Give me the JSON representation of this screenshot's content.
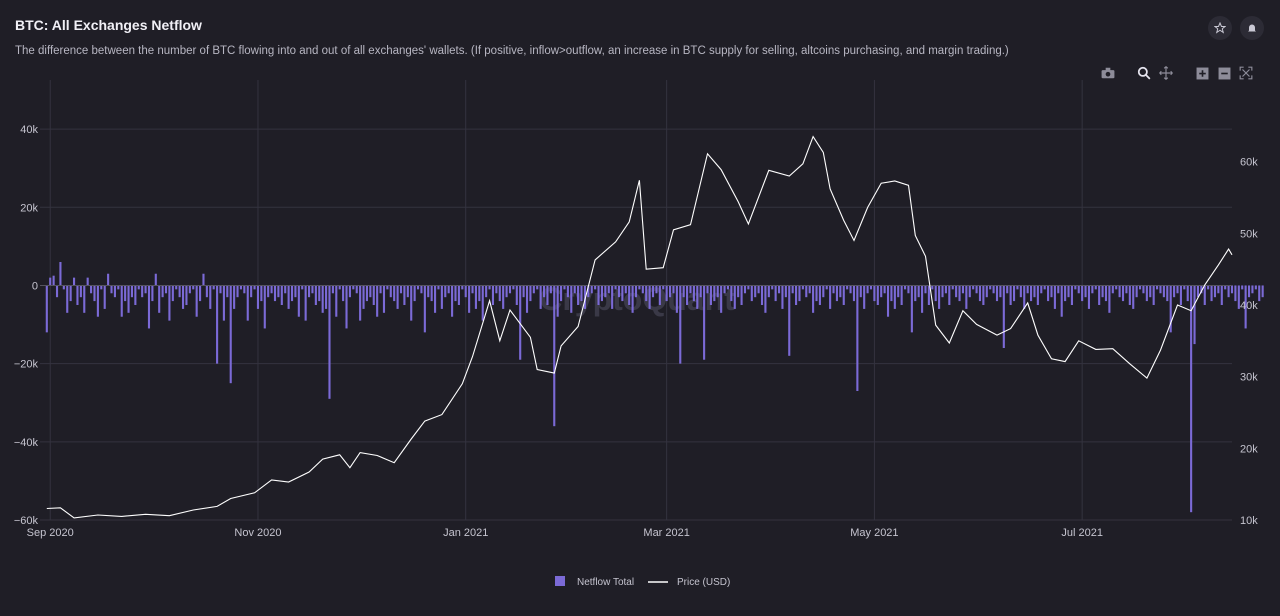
{
  "header": {
    "title": "BTC: All Exchanges Netflow",
    "subtitle": "The difference between the number of BTC flowing into and out of all exchanges' wallets. (If positive, inflow>outflow, an increase in BTC supply for selling, altcoins purchasing, and margin trading.)"
  },
  "icons": {
    "star": "star-icon",
    "bell": "bell-icon",
    "camera": "camera-icon",
    "zoom": "zoom-icon",
    "pan": "pan-icon",
    "zoom_in": "zoom-in-icon",
    "zoom_out": "zoom-out-icon",
    "reset": "autoscale-icon"
  },
  "watermark": "CryptoQuant",
  "colors": {
    "background": "#1f1e26",
    "netflow": "#7b6ad6",
    "price": "#ffffff",
    "grid": "#34333f"
  },
  "chart_data": {
    "type": "bar+line",
    "x_range": [
      "2020-08-29",
      "2021-08-14"
    ],
    "x_ticks": [
      {
        "date": "2020-09-01",
        "label": "Sep 2020"
      },
      {
        "date": "2020-11-01",
        "label": "Nov 2020"
      },
      {
        "date": "2021-01-01",
        "label": "Jan 2021"
      },
      {
        "date": "2021-03-01",
        "label": "Mar 2021"
      },
      {
        "date": "2021-05-01",
        "label": "May 2021"
      },
      {
        "date": "2021-07-01",
        "label": "Jul 2021"
      }
    ],
    "y_left": {
      "range": [
        -60000,
        50000
      ],
      "ticks": [
        40000,
        20000,
        0,
        -20000,
        -40000,
        -60000
      ],
      "tick_labels": [
        "40k",
        "20k",
        "0",
        "−20k",
        "−40k",
        "−60k"
      ]
    },
    "y_right": {
      "range": [
        10000,
        70000
      ],
      "ticks": [
        60000,
        50000,
        40000,
        30000,
        20000,
        10000
      ],
      "tick_labels": [
        "60k",
        "50k",
        "40k",
        "30k",
        "20k",
        "10k"
      ]
    },
    "series": [
      {
        "name": "Netflow Total",
        "axis": "left",
        "start_date": "2020-08-31",
        "values": [
          -12000,
          2000,
          2500,
          -3000,
          6000,
          -1000,
          -7000,
          -4000,
          2000,
          -5000,
          -3000,
          -7000,
          2000,
          -2000,
          -4000,
          -8000,
          -1000,
          -6000,
          3000,
          -2000,
          -3000,
          -1000,
          -8000,
          -4000,
          -7000,
          -3000,
          -5000,
          -1000,
          -3000,
          -2000,
          -11000,
          -4000,
          3000,
          -7000,
          -3000,
          -2000,
          -9000,
          -4000,
          -1000,
          -3000,
          -6000,
          -5000,
          -2000,
          -1000,
          -8000,
          -4000,
          3000,
          -3000,
          -6000,
          -1000,
          -20000,
          -2000,
          -9000,
          -3000,
          -25000,
          -6000,
          -3000,
          -1000,
          -2000,
          -9000,
          -3000,
          -1000,
          -6000,
          -4000,
          -11000,
          -3000,
          -2000,
          -4000,
          -3000,
          -5000,
          -2000,
          -6000,
          -4000,
          -3000,
          -8000,
          -1000,
          -9000,
          -3000,
          -2000,
          -5000,
          -4000,
          -7000,
          -6000,
          -29000,
          -2000,
          -8000,
          -1000,
          -4000,
          -11000,
          -3000,
          -1000,
          -2000,
          -9000,
          -6000,
          -4000,
          -3000,
          -5000,
          -8000,
          -2000,
          -7000,
          -1000,
          -3000,
          -4000,
          -6000,
          -2000,
          -5000,
          -3000,
          -9000,
          -4000,
          -1000,
          -2000,
          -12000,
          -3000,
          -4000,
          -7000,
          -1000,
          -6000,
          -3000,
          -2000,
          -8000,
          -4000,
          -5000,
          -1000,
          -3000,
          -7000,
          -2000,
          -6000,
          -4000,
          -9000,
          -3000,
          -1000,
          -5000,
          -2000,
          -4000,
          -6000,
          -3000,
          -2000,
          -1000,
          -5000,
          -19000,
          -3000,
          -7000,
          -4000,
          -2000,
          -1000,
          -6000,
          -3000,
          -5000,
          -2000,
          -36000,
          -8000,
          -4000,
          -1000,
          -3000,
          -7000,
          -2000,
          -5000,
          -4000,
          -6000,
          -3000,
          -2000,
          -1000,
          -5000,
          -4000,
          -3000,
          -2000,
          -6000,
          -1000,
          -3000,
          -4000,
          -2000,
          -5000,
          -7000,
          -3000,
          -1000,
          -2000,
          -4000,
          -6000,
          -3000,
          -2000,
          -5000,
          -1000,
          -4000,
          -3000,
          -2000,
          -7000,
          -20000,
          -3000,
          -5000,
          -2000,
          -4000,
          -6000,
          -3000,
          -19000,
          -2000,
          -5000,
          -4000,
          -3000,
          -7000,
          -2000,
          -1000,
          -4000,
          -6000,
          -3000,
          -5000,
          -2000,
          -1000,
          -4000,
          -3000,
          -2000,
          -5000,
          -7000,
          -3000,
          -1000,
          -4000,
          -2000,
          -6000,
          -3000,
          -18000,
          -2000,
          -5000,
          -4000,
          -1000,
          -3000,
          -2000,
          -7000,
          -4000,
          -5000,
          -3000,
          -1000,
          -6000,
          -2000,
          -4000,
          -3000,
          -5000,
          -1000,
          -2000,
          -4000,
          -27000,
          -3000,
          -6000,
          -2000,
          -1000,
          -4000,
          -5000,
          -3000,
          -2000,
          -8000,
          -4000,
          -6000,
          -3000,
          -5000,
          -1000,
          -2000,
          -12000,
          -4000,
          -3000,
          -7000,
          -2000,
          -5000,
          -1000,
          -4000,
          -6000,
          -3000,
          -2000,
          -5000,
          -1000,
          -3000,
          -4000,
          -2000,
          -6000,
          -3000,
          -1000,
          -2000,
          -4000,
          -5000,
          -3000,
          -1000,
          -2000,
          -4000,
          -3000,
          -16000,
          -2000,
          -5000,
          -4000,
          -1000,
          -3000,
          -6000,
          -2000,
          -4000,
          -3000,
          -5000,
          -2000,
          -1000,
          -4000,
          -3000,
          -6000,
          -2000,
          -8000,
          -4000,
          -3000,
          -5000,
          -1000,
          -2000,
          -4000,
          -3000,
          -6000,
          -2000,
          -1000,
          -5000,
          -3000,
          -4000,
          -7000,
          -2000,
          -1000,
          -3000,
          -4000,
          -2000,
          -5000,
          -6000,
          -3000,
          -1000,
          -2000,
          -4000,
          -3000,
          -5000,
          -1000,
          -2000,
          -3000,
          -4000,
          -12000,
          -3000,
          -2000,
          -5000,
          -1000,
          -4000,
          -58000,
          -15000,
          -3000,
          -2000,
          -5000,
          -1000,
          -4000,
          -3000,
          -2000,
          -5000,
          -1000,
          -3000,
          -2000,
          -4000,
          -6000,
          -1000,
          -11000,
          -3000,
          -2000,
          -1000,
          -4000,
          -3000
        ],
        "positive_values": [
          0,
          2000,
          2500,
          0,
          6000,
          0,
          0,
          0,
          2000,
          0,
          0,
          0,
          2000,
          0,
          0,
          0,
          0,
          0,
          3000,
          0,
          0,
          0,
          0,
          0,
          0,
          0,
          0,
          0,
          0,
          0,
          0,
          0,
          3000,
          0,
          0,
          0,
          0,
          0,
          0,
          0,
          0,
          0,
          0,
          0,
          0,
          0,
          3000,
          0,
          0,
          0,
          0,
          0,
          0,
          0,
          0,
          0,
          0,
          0,
          0,
          0,
          0,
          0,
          0,
          0,
          0,
          0,
          0,
          0,
          0,
          0,
          0,
          0,
          0,
          0,
          0,
          0,
          0,
          0,
          0,
          0,
          0,
          0,
          0,
          0,
          0,
          0,
          0,
          0,
          0,
          0,
          0,
          0,
          0,
          0,
          0,
          0,
          0,
          0,
          0,
          0,
          0,
          0,
          0,
          0,
          0,
          0,
          0,
          0,
          0,
          0,
          0,
          0,
          0,
          0,
          0,
          0,
          0,
          0,
          0,
          0,
          0,
          0,
          0,
          0,
          0,
          0,
          0,
          0,
          0,
          0,
          0,
          0,
          0,
          0,
          0,
          0,
          0,
          0,
          0,
          0,
          0,
          0,
          0,
          0,
          0,
          0,
          0,
          0,
          0,
          0,
          0,
          0,
          0,
          0,
          0,
          0,
          0,
          0,
          0,
          0,
          0,
          0,
          0,
          0,
          0,
          0,
          0,
          0,
          0,
          0,
          0,
          0,
          0,
          0,
          0,
          0,
          0,
          0,
          0,
          0,
          0,
          0,
          0,
          0,
          0,
          0,
          0,
          0,
          0,
          0,
          0,
          0,
          0,
          0,
          0,
          0,
          0,
          0,
          0,
          0,
          0,
          0,
          0,
          0,
          0,
          0,
          0,
          0,
          0,
          0,
          0,
          0,
          0,
          0,
          0,
          0,
          0,
          0,
          0,
          0,
          0,
          0,
          0,
          0,
          0,
          0,
          0,
          0,
          0,
          0,
          0,
          0,
          0,
          0,
          0,
          0,
          0,
          0,
          0,
          0,
          0,
          0,
          0,
          0,
          0,
          0,
          0,
          0,
          0,
          0,
          0,
          0,
          0,
          0,
          0,
          0,
          0,
          0,
          0,
          0,
          0,
          0,
          0,
          0,
          0,
          0,
          0,
          0,
          0,
          0,
          0,
          0,
          0,
          0,
          0,
          0,
          0,
          0,
          0,
          0,
          0,
          0,
          0,
          0,
          0,
          0,
          0,
          0,
          0,
          0,
          0,
          0,
          0,
          0,
          0,
          0,
          0,
          0,
          0,
          0,
          0,
          0,
          0,
          0,
          0,
          0,
          0,
          0,
          0,
          0,
          0,
          0,
          0,
          0,
          0,
          0,
          0,
          0,
          0,
          0,
          0,
          0,
          0,
          0,
          0,
          0,
          0,
          0,
          0,
          0,
          0,
          0,
          0,
          0,
          0,
          0
        ]
      },
      {
        "name": "Price (USD)",
        "axis": "right",
        "points": [
          [
            "2020-08-31",
            11600
          ],
          [
            "2020-09-04",
            11700
          ],
          [
            "2020-09-08",
            10300
          ],
          [
            "2020-09-15",
            10700
          ],
          [
            "2020-09-22",
            10500
          ],
          [
            "2020-09-29",
            10800
          ],
          [
            "2020-10-06",
            10600
          ],
          [
            "2020-10-13",
            11400
          ],
          [
            "2020-10-20",
            11900
          ],
          [
            "2020-10-24",
            13000
          ],
          [
            "2020-10-31",
            13800
          ],
          [
            "2020-11-05",
            15600
          ],
          [
            "2020-11-10",
            15300
          ],
          [
            "2020-11-16",
            16700
          ],
          [
            "2020-11-20",
            18500
          ],
          [
            "2020-11-25",
            19100
          ],
          [
            "2020-11-28",
            17300
          ],
          [
            "2020-12-01",
            19400
          ],
          [
            "2020-12-06",
            19000
          ],
          [
            "2020-12-11",
            18000
          ],
          [
            "2020-12-16",
            21300
          ],
          [
            "2020-12-20",
            23800
          ],
          [
            "2020-12-25",
            24700
          ],
          [
            "2020-12-31",
            29000
          ],
          [
            "2021-01-03",
            32800
          ],
          [
            "2021-01-08",
            40600
          ],
          [
            "2021-01-11",
            35000
          ],
          [
            "2021-01-14",
            39300
          ],
          [
            "2021-01-20",
            35500
          ],
          [
            "2021-01-22",
            31000
          ],
          [
            "2021-01-27",
            30500
          ],
          [
            "2021-01-29",
            34300
          ],
          [
            "2021-02-03",
            37000
          ],
          [
            "2021-02-08",
            46300
          ],
          [
            "2021-02-14",
            48800
          ],
          [
            "2021-02-18",
            51600
          ],
          [
            "2021-02-21",
            57400
          ],
          [
            "2021-02-23",
            45000
          ],
          [
            "2021-02-28",
            45200
          ],
          [
            "2021-03-03",
            50500
          ],
          [
            "2021-03-08",
            51200
          ],
          [
            "2021-03-13",
            61100
          ],
          [
            "2021-03-17",
            58900
          ],
          [
            "2021-03-22",
            54400
          ],
          [
            "2021-03-25",
            51300
          ],
          [
            "2021-03-31",
            58800
          ],
          [
            "2021-04-06",
            58000
          ],
          [
            "2021-04-10",
            59700
          ],
          [
            "2021-04-13",
            63500
          ],
          [
            "2021-04-16",
            61300
          ],
          [
            "2021-04-18",
            56200
          ],
          [
            "2021-04-22",
            51800
          ],
          [
            "2021-04-25",
            49000
          ],
          [
            "2021-04-29",
            53600
          ],
          [
            "2021-05-03",
            57000
          ],
          [
            "2021-05-07",
            57300
          ],
          [
            "2021-05-11",
            56700
          ],
          [
            "2021-05-13",
            49700
          ],
          [
            "2021-05-16",
            46800
          ],
          [
            "2021-05-19",
            37200
          ],
          [
            "2021-05-23",
            34700
          ],
          [
            "2021-05-27",
            39200
          ],
          [
            "2021-05-31",
            37300
          ],
          [
            "2021-06-06",
            35800
          ],
          [
            "2021-06-10",
            36700
          ],
          [
            "2021-06-15",
            40300
          ],
          [
            "2021-06-18",
            35800
          ],
          [
            "2021-06-22",
            32500
          ],
          [
            "2021-06-26",
            32100
          ],
          [
            "2021-06-30",
            35000
          ],
          [
            "2021-07-05",
            33800
          ],
          [
            "2021-07-10",
            33900
          ],
          [
            "2021-07-15",
            31800
          ],
          [
            "2021-07-20",
            29800
          ],
          [
            "2021-07-24",
            33700
          ],
          [
            "2021-07-29",
            40000
          ],
          [
            "2021-08-02",
            39200
          ],
          [
            "2021-08-06",
            42800
          ],
          [
            "2021-08-10",
            45600
          ],
          [
            "2021-08-13",
            47800
          ],
          [
            "2021-08-14",
            47000
          ]
        ]
      }
    ],
    "legend": {
      "placement": "bottom-center",
      "entries": [
        "Netflow Total",
        "Price (USD)"
      ]
    },
    "grid": true
  }
}
